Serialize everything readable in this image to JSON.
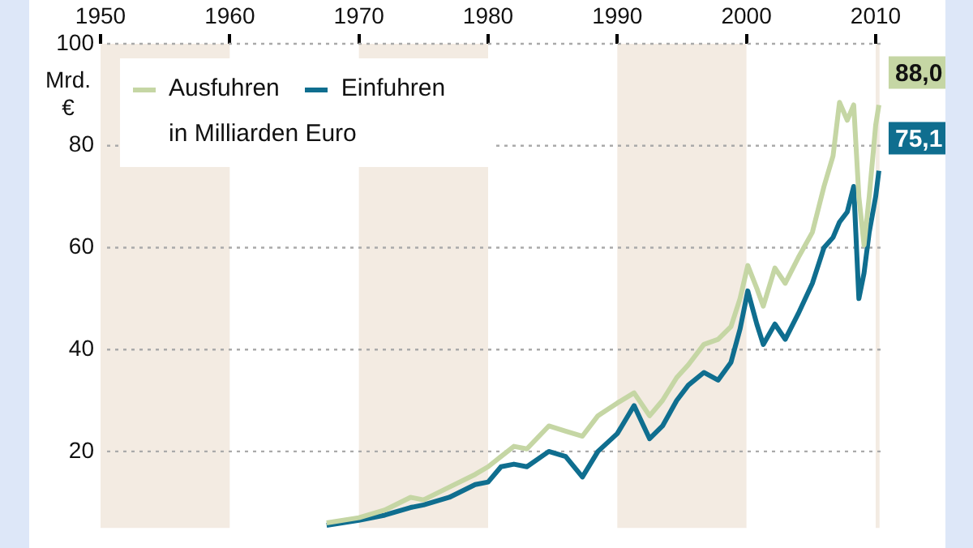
{
  "chart_data": {
    "type": "line",
    "subtitle": "in Milliarden Euro",
    "ylabel": "Mrd. €",
    "xlim": [
      1950,
      2015.4
    ],
    "xticks": [
      1950,
      1960,
      1970,
      1980,
      1990,
      2000,
      2010
    ],
    "ylim": [
      5,
      100
    ],
    "yticks": [
      20,
      40,
      60,
      80,
      100
    ],
    "grid": "y",
    "legend": "top left",
    "marker": "none",
    "line_style": "solid",
    "bands": [
      {
        "axis": "x",
        "from": 1950,
        "to": 1960,
        "color": "#f3ebe2"
      },
      {
        "axis": "x",
        "from": 1970,
        "to": 1980,
        "color": "#f3ebe2"
      },
      {
        "axis": "x",
        "from": 1990,
        "to": 2000,
        "color": "#f3ebe2"
      },
      {
        "axis": "x",
        "from": 2010,
        "to": 2010.3,
        "color": "#f3ebe2"
      }
    ],
    "x": [
      1967.5,
      1970,
      1972,
      1974,
      1975,
      1977,
      1979,
      1980,
      1981,
      1982,
      1983,
      1984.7,
      1986,
      1987.3,
      1988.5,
      1990,
      1991.3,
      1992.5,
      1993.5,
      1994.6,
      1995.5,
      1996.7,
      1997.8,
      1998.8,
      1999.5,
      2000.1,
      2000.8,
      2001.3,
      2002.2,
      2003,
      2004,
      2005.1,
      2006,
      2006.7,
      2007.2,
      2007.8,
      2008.3,
      2008.7,
      2009.1,
      2009.5,
      2010,
      2010.25
    ],
    "series": [
      {
        "name": "Ausfuhren",
        "color": "#c5d6a4",
        "values": [
          6,
          7,
          8.5,
          11,
          10.5,
          13,
          15.5,
          17,
          19,
          21,
          20.5,
          25,
          24,
          23,
          27,
          29.5,
          31.5,
          27,
          30,
          34.5,
          37,
          41,
          42,
          44.5,
          50,
          56.5,
          52,
          48.5,
          56,
          53,
          58,
          63,
          72,
          78,
          88.5,
          85,
          88,
          70,
          60.5,
          70,
          84,
          88.0
        ],
        "value_labels": [
          null,
          null,
          null,
          null,
          null,
          null,
          null,
          null,
          null,
          null,
          null,
          null,
          null,
          null,
          null,
          null,
          null,
          null,
          null,
          null,
          null,
          null,
          null,
          null,
          null,
          null,
          null,
          null,
          null,
          null,
          null,
          null,
          null,
          null,
          null,
          null,
          null,
          null,
          null,
          null,
          null,
          "88,0"
        ]
      },
      {
        "name": "Einfuhren",
        "color": "#0f6e8f",
        "values": [
          5.5,
          6.5,
          7.5,
          9,
          9.5,
          11,
          13.5,
          14,
          17,
          17.5,
          17,
          20,
          19,
          15,
          20,
          23.5,
          29,
          22.5,
          25,
          30,
          33,
          35.5,
          34,
          37.5,
          44,
          51.5,
          45,
          41,
          45,
          42,
          47,
          53,
          60,
          62,
          65,
          67,
          72,
          50,
          55,
          63,
          70,
          75.1
        ],
        "value_labels": [
          null,
          null,
          null,
          null,
          null,
          null,
          null,
          null,
          null,
          null,
          null,
          null,
          null,
          null,
          null,
          null,
          null,
          null,
          null,
          null,
          null,
          null,
          null,
          null,
          null,
          null,
          null,
          null,
          null,
          null,
          null,
          null,
          null,
          null,
          null,
          null,
          null,
          null,
          null,
          null,
          null,
          "75,1"
        ]
      }
    ]
  }
}
